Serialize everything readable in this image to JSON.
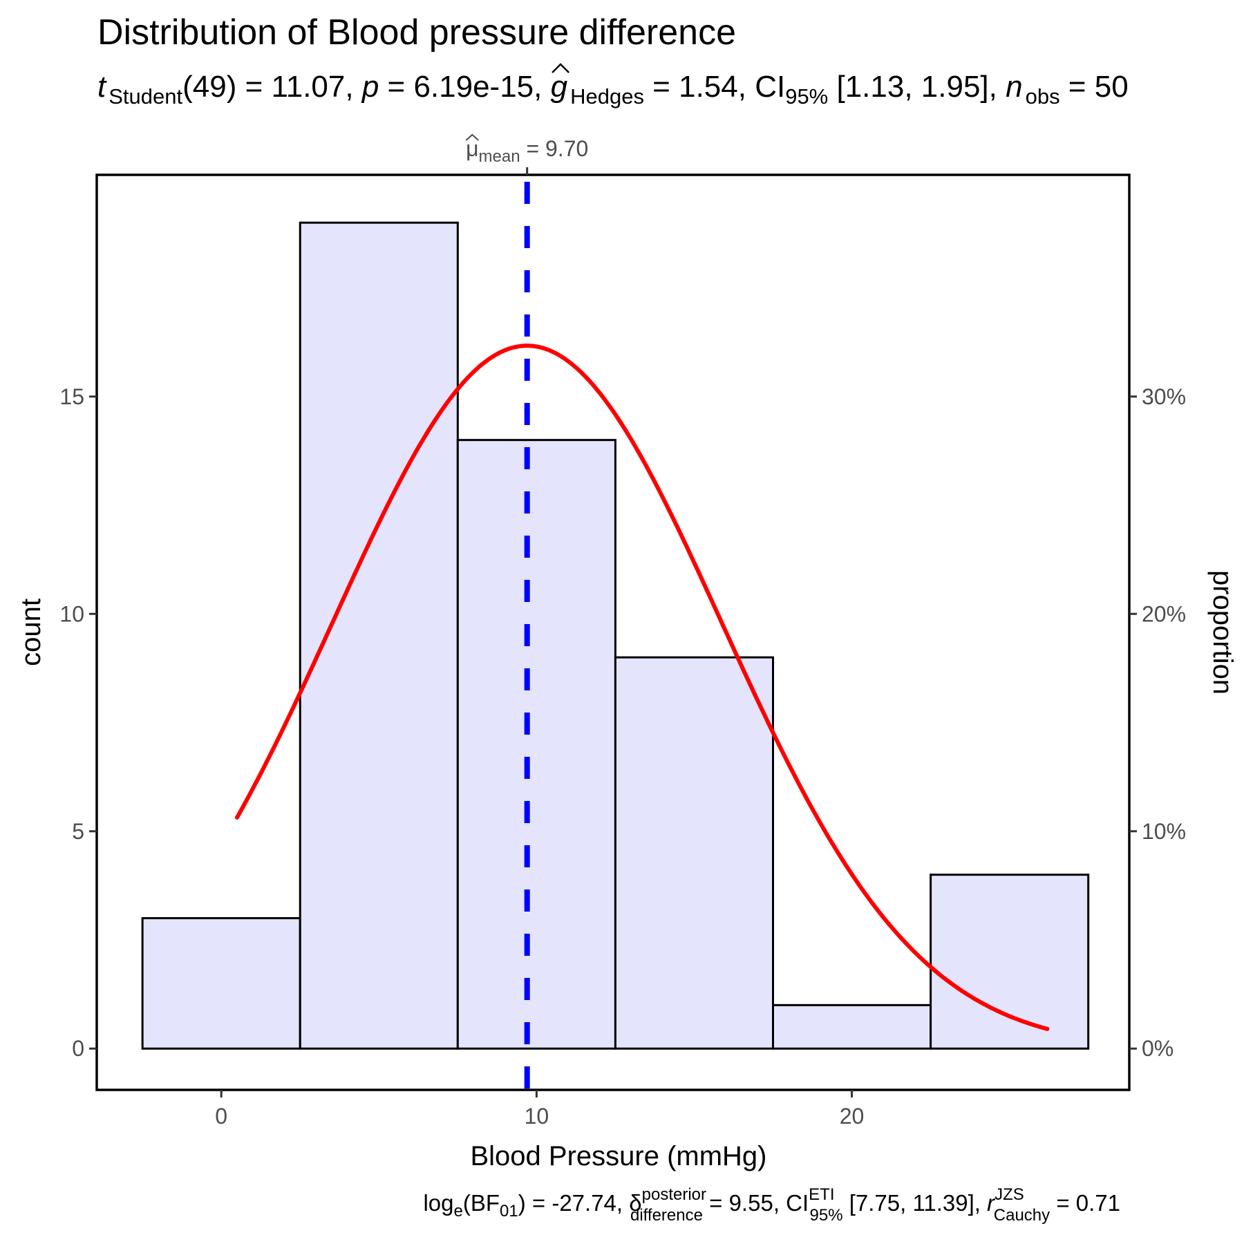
{
  "chart_data": {
    "type": "bar",
    "subtype": "histogram",
    "title": "Distribution of Blood pressure difference",
    "subtitle": {
      "t_label": "t",
      "t_sub": "Student",
      "t_df": "(49)",
      "t_value": "11.07",
      "p_label": "p",
      "p_value": "6.19e-15",
      "g_label": "g",
      "g_sub": "Hedges",
      "g_value": "1.54",
      "ci_label": "CI",
      "ci_sub": "95%",
      "ci_value": "[1.13, 1.95]",
      "n_label": "n",
      "n_sub": "obs",
      "n_value": "50"
    },
    "caption": {
      "bf_label": "log",
      "bf_sub": "e",
      "bf_inner": "BF",
      "bf_inner_sub": "01",
      "bf_value": "-27.74",
      "delta_label": "δ",
      "delta_sup": "posterior",
      "delta_sub": "difference",
      "delta_value": "9.55",
      "ci_label": "CI",
      "ci_sup": "ETI",
      "ci_sub": "95%",
      "ci_value": "[7.75, 11.39]",
      "r_label": "r",
      "r_sup": "JZS",
      "r_sub": "Cauchy",
      "r_value": "0.71"
    },
    "xlabel": "Blood Pressure (mmHg)",
    "ylabel": "count",
    "ylabel_secondary": "proportion",
    "xlim": [
      -3.95,
      28.8
    ],
    "ylim": [
      -0.95,
      20.1
    ],
    "x_ticks": [
      0,
      10,
      20
    ],
    "x_tick_labels": [
      "0",
      "10",
      "20"
    ],
    "y_ticks": [
      0,
      5,
      10,
      15
    ],
    "y_tick_labels": [
      "0",
      "5",
      "10",
      "15"
    ],
    "y2_ticks": [
      0,
      5,
      10,
      15
    ],
    "y2_tick_labels": [
      "0%",
      "10%",
      "20%",
      "30%"
    ],
    "grid": false,
    "bin_width": 5,
    "bins": [
      {
        "center": 0,
        "count": 3
      },
      {
        "center": 5,
        "count": 19
      },
      {
        "center": 10,
        "count": 14
      },
      {
        "center": 15,
        "count": 9
      },
      {
        "center": 20,
        "count": 1
      },
      {
        "center": 25,
        "count": 4
      }
    ],
    "normal_curve": {
      "mean": 9.7,
      "x_range": [
        0.5,
        26.2
      ]
    },
    "mean_line": {
      "value": 9.7,
      "label_hat": "μ",
      "label_sub": "mean",
      "label_value": "9.70"
    },
    "n": 50,
    "colors": {
      "bar_fill": "#e4e4fd",
      "bar_stroke": "#000000",
      "curve": "#ff0000",
      "mean_line": "#0000ff",
      "tick_text": "#4d4d4d"
    }
  }
}
